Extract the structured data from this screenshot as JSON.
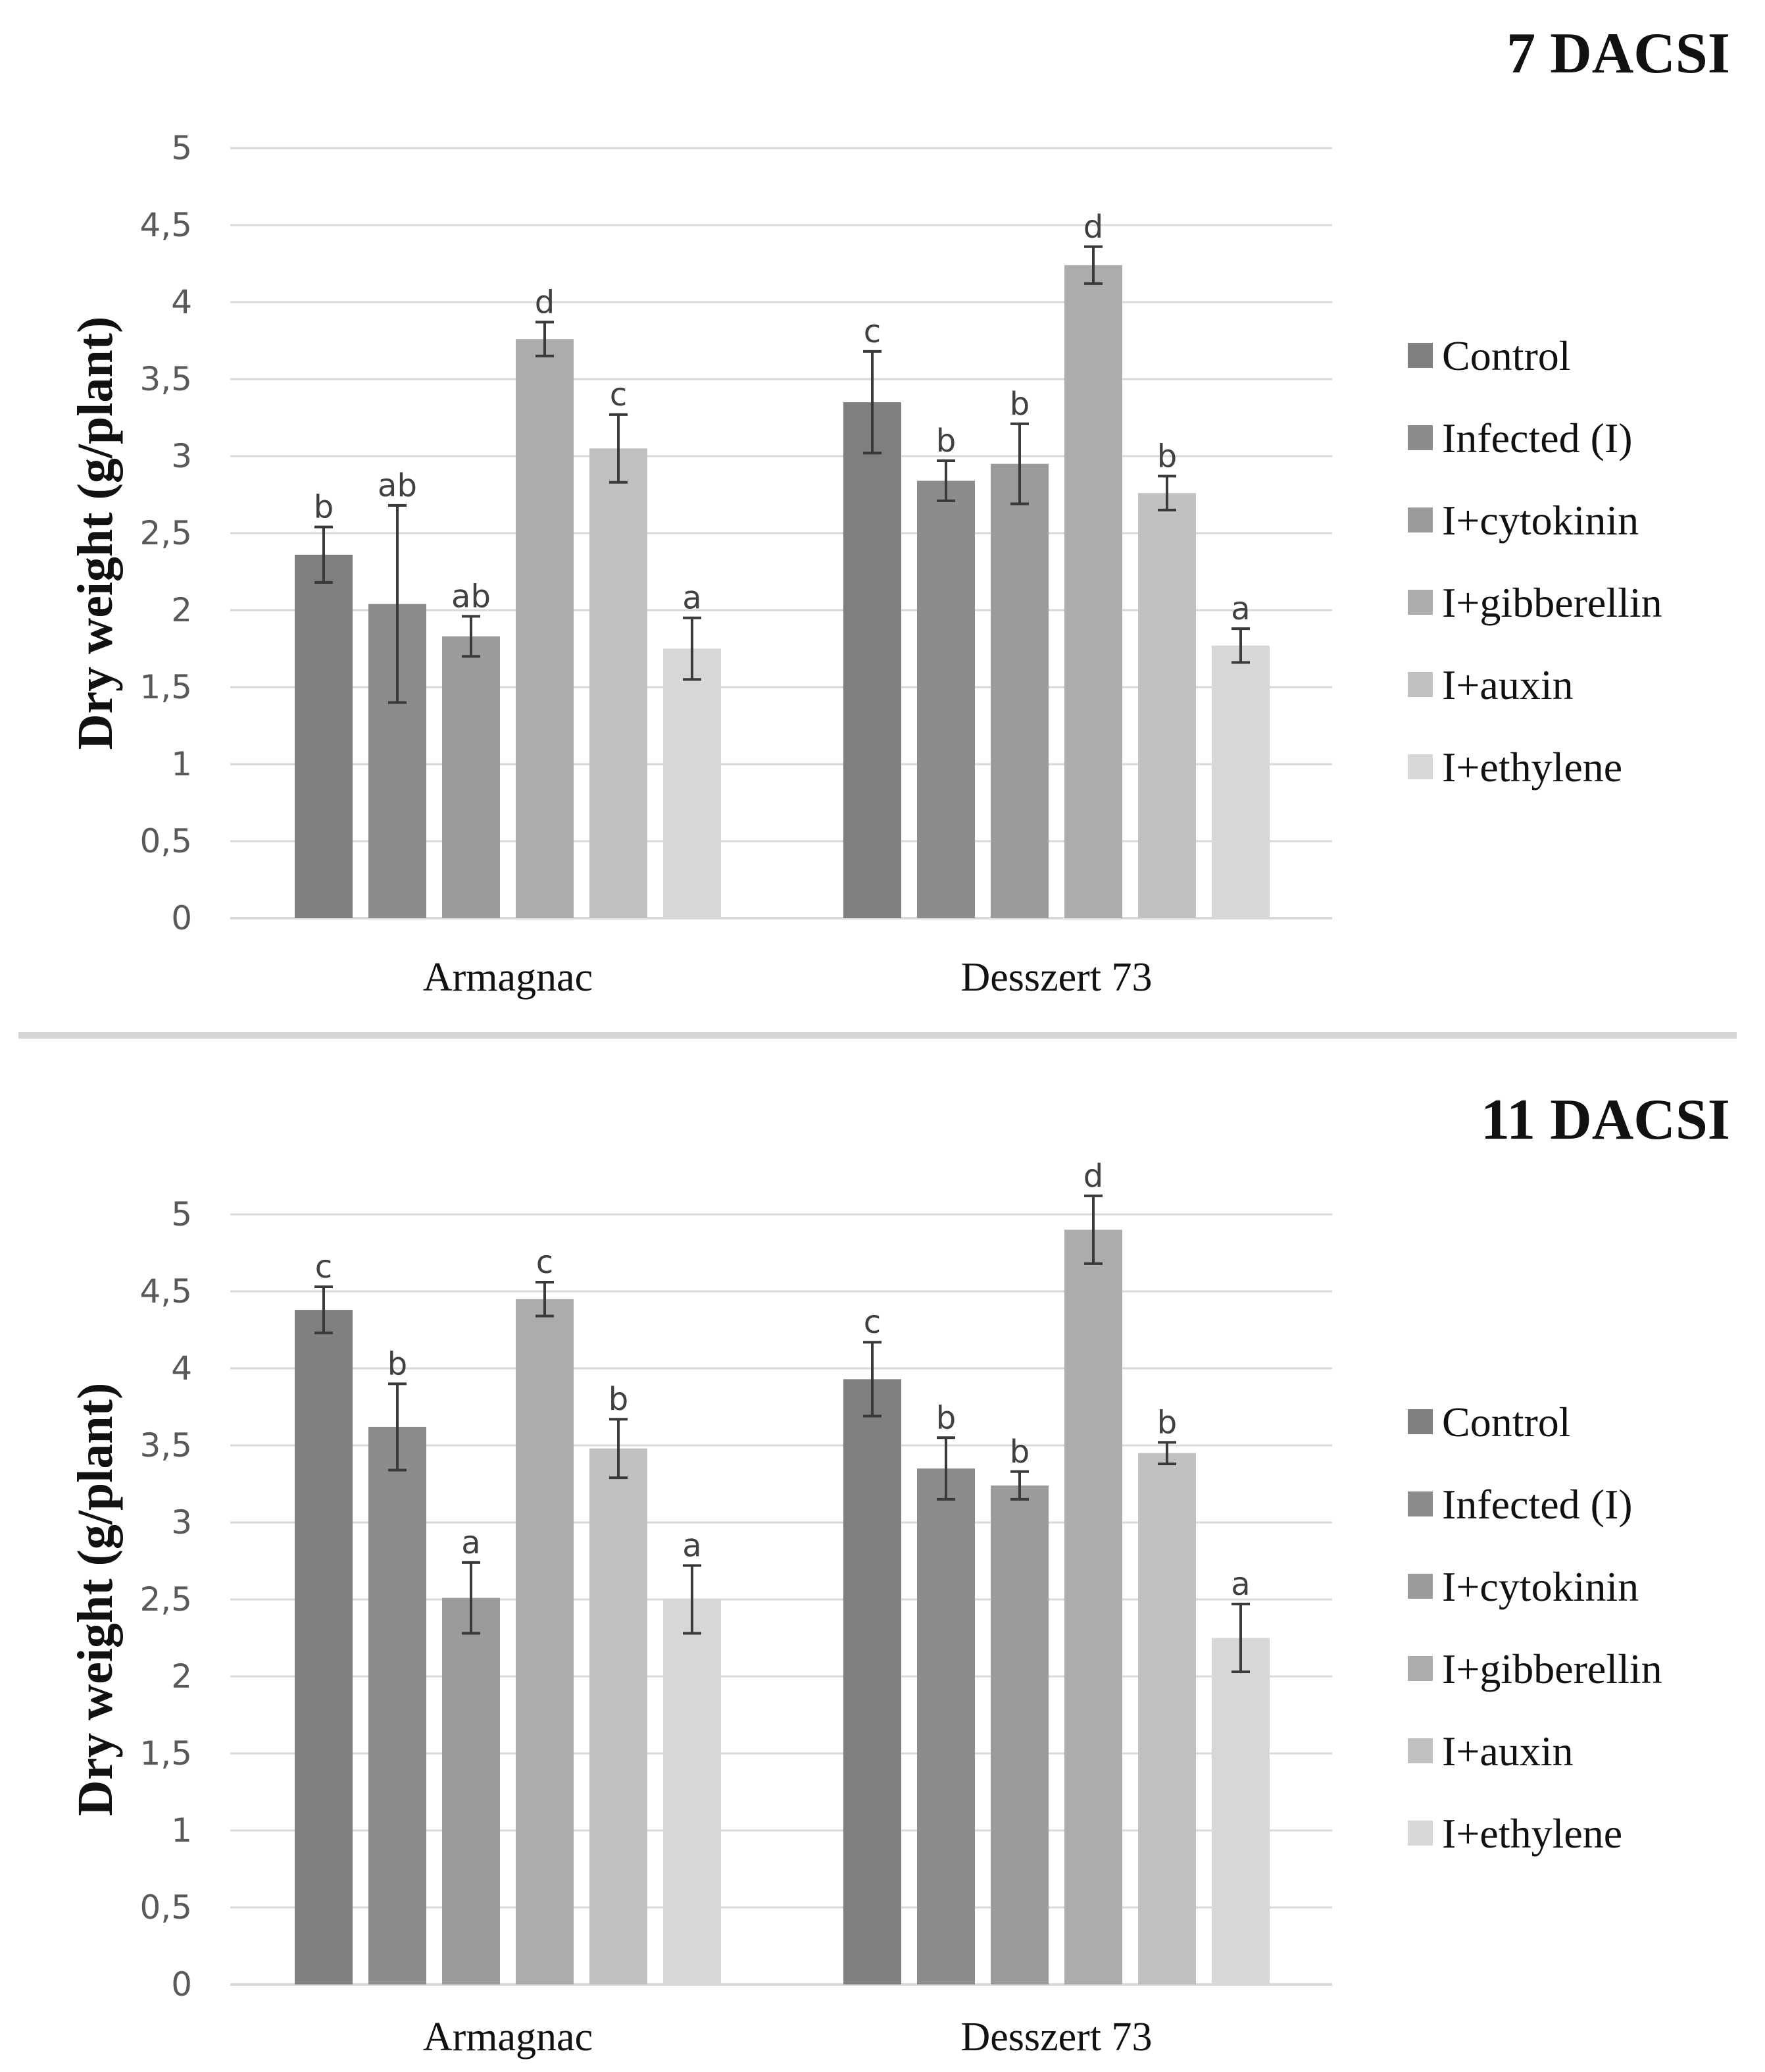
{
  "chart_data": [
    {
      "type": "bar",
      "title": "7 DACSI",
      "xlabel": "",
      "ylabel": "Dry weight (g/plant)",
      "ylim": [
        0,
        5
      ],
      "yticks": [
        "0",
        "0,5",
        "1",
        "1,5",
        "2",
        "2,5",
        "3",
        "3,5",
        "4",
        "4,5",
        "5"
      ],
      "grid": true,
      "legend_position": "right",
      "categories": [
        "Armagnac",
        "Desszert 73"
      ],
      "series": [
        {
          "name": "Control",
          "color": "#7f7f7f",
          "values": [
            2.36,
            3.35
          ],
          "errors": [
            0.18,
            0.33
          ],
          "letters": [
            "b",
            "c"
          ]
        },
        {
          "name": "Infected (I)",
          "color": "#8c8c8c",
          "values": [
            2.04,
            2.84
          ],
          "errors": [
            0.64,
            0.13
          ],
          "letters": [
            "ab",
            "b"
          ]
        },
        {
          "name": "I+cytokinin",
          "color": "#9b9b9b",
          "values": [
            1.83,
            2.95
          ],
          "errors": [
            0.13,
            0.26
          ],
          "letters": [
            "ab",
            "b"
          ]
        },
        {
          "name": "I+gibberellin",
          "color": "#acacac",
          "values": [
            3.76,
            4.24
          ],
          "errors": [
            0.11,
            0.12
          ],
          "letters": [
            "d",
            "d"
          ]
        },
        {
          "name": "I+auxin",
          "color": "#c1c1c1",
          "values": [
            3.05,
            2.76
          ],
          "errors": [
            0.22,
            0.11
          ],
          "letters": [
            "c",
            "b"
          ]
        },
        {
          "name": "I+ethylene",
          "color": "#d7d7d7",
          "values": [
            1.75,
            1.77
          ],
          "errors": [
            0.2,
            0.11
          ],
          "letters": [
            "a",
            "a"
          ]
        }
      ]
    },
    {
      "type": "bar",
      "title": "11 DACSI",
      "xlabel": "",
      "ylabel": "Dry weight (g/plant)",
      "ylim": [
        0,
        5
      ],
      "yticks": [
        "0",
        "0,5",
        "1",
        "1,5",
        "2",
        "2,5",
        "3",
        "3,5",
        "4",
        "4,5",
        "5"
      ],
      "grid": true,
      "legend_position": "right",
      "categories": [
        "Armagnac",
        "Desszert 73"
      ],
      "series": [
        {
          "name": "Control",
          "color": "#7f7f7f",
          "values": [
            4.38,
            3.93
          ],
          "errors": [
            0.15,
            0.24
          ],
          "letters": [
            "c",
            "c"
          ]
        },
        {
          "name": "Infected (I)",
          "color": "#8c8c8c",
          "values": [
            3.62,
            3.35
          ],
          "errors": [
            0.28,
            0.2
          ],
          "letters": [
            "b",
            "b"
          ]
        },
        {
          "name": "I+cytokinin",
          "color": "#9b9b9b",
          "values": [
            2.51,
            3.24
          ],
          "errors": [
            0.23,
            0.09
          ],
          "letters": [
            "a",
            "b"
          ]
        },
        {
          "name": "I+gibberellin",
          "color": "#acacac",
          "values": [
            4.45,
            4.9
          ],
          "errors": [
            0.11,
            0.22
          ],
          "letters": [
            "c",
            "d"
          ]
        },
        {
          "name": "I+auxin",
          "color": "#c1c1c1",
          "values": [
            3.48,
            3.45
          ],
          "errors": [
            0.19,
            0.07
          ],
          "letters": [
            "b",
            "b"
          ]
        },
        {
          "name": "I+ethylene",
          "color": "#d7d7d7",
          "values": [
            2.5,
            2.25
          ],
          "errors": [
            0.22,
            0.22
          ],
          "letters": [
            "a",
            "a"
          ]
        }
      ]
    }
  ]
}
